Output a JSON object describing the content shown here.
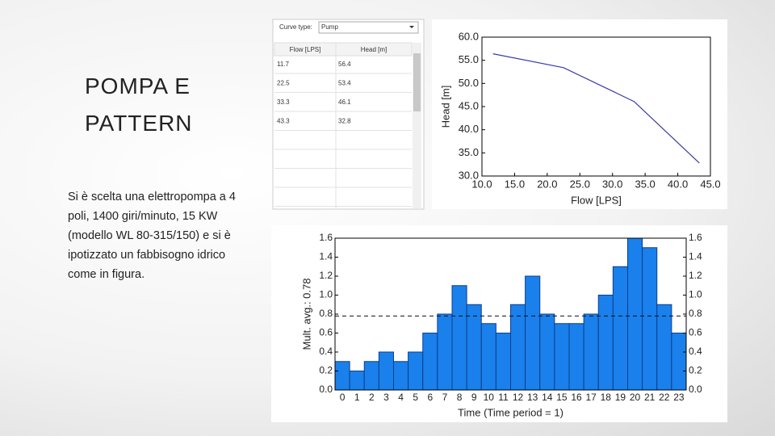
{
  "slide": {
    "title_lines": [
      "POMPA E",
      "PATTERN"
    ],
    "body": "Si è scelta una elettropompa a 4 poli, 1400 giri/minuto, 15 KW (modello WL 80-315/150) e si è ipotizzato un fabbisogno idrico come in figura."
  },
  "curve_editor": {
    "label": "Curve type:",
    "selected": "Pump",
    "columns": [
      "Flow [LPS]",
      "Head [m]"
    ],
    "rows": [
      [
        "11.7",
        "56.4"
      ],
      [
        "22.5",
        "53.4"
      ],
      [
        "33.3",
        "46.1"
      ],
      [
        "43.3",
        "32.8"
      ]
    ]
  },
  "chart_data": [
    {
      "type": "line",
      "x": [
        11.7,
        22.5,
        33.3,
        43.3
      ],
      "values": [
        56.4,
        53.4,
        46.1,
        32.8
      ],
      "color": "#3a3aa8",
      "xlabel": "Flow [LPS]",
      "ylabel": "Head [m]",
      "xlim": [
        10,
        45
      ],
      "ylim": [
        30,
        60
      ],
      "xticks": [
        {
          "value": 10,
          "label": "10.0"
        },
        {
          "value": 15,
          "label": "15.0"
        },
        {
          "value": 20,
          "label": "20.0"
        },
        {
          "value": 25,
          "label": "25.0"
        },
        {
          "value": 30,
          "label": "30.0"
        },
        {
          "value": 35,
          "label": "35.0"
        },
        {
          "value": 40,
          "label": "40.0"
        },
        {
          "value": 45,
          "label": "45.0"
        }
      ],
      "yticks": [
        {
          "value": 30,
          "label": "30.0"
        },
        {
          "value": 35,
          "label": "35.0"
        },
        {
          "value": 40,
          "label": "40.0"
        },
        {
          "value": 45,
          "label": "45.0"
        },
        {
          "value": 50,
          "label": "50.0"
        },
        {
          "value": 55,
          "label": "55.0"
        },
        {
          "value": 60,
          "label": "60.0"
        }
      ]
    },
    {
      "type": "bar",
      "categories": [
        "0",
        "1",
        "2",
        "3",
        "4",
        "5",
        "6",
        "7",
        "8",
        "9",
        "10",
        "11",
        "12",
        "13",
        "14",
        "15",
        "16",
        "17",
        "18",
        "19",
        "20",
        "21",
        "22",
        "23"
      ],
      "values": [
        0.3,
        0.2,
        0.3,
        0.4,
        0.3,
        0.4,
        0.6,
        0.8,
        1.1,
        0.9,
        0.7,
        0.6,
        0.9,
        1.2,
        0.8,
        0.7,
        0.7,
        0.8,
        1.0,
        1.3,
        1.6,
        1.5,
        0.9,
        0.6
      ],
      "color": "#1a80ec",
      "average_line": 0.78,
      "xlabel": "Time (Time period = 1)",
      "ylabel": "Mult. avg.: 0.78",
      "ylim": [
        0,
        1.6
      ],
      "y2lim": [
        0,
        1.6
      ],
      "yticks": [
        {
          "value": 0,
          "label": "0.0"
        },
        0.2,
        0.4,
        0.6,
        0.8,
        {
          "value": 1,
          "label": "1.0"
        },
        1.2,
        1.4,
        1.6
      ],
      "y2ticks": [
        {
          "value": 0,
          "label": "0.0"
        },
        0.2,
        0.4,
        0.6,
        0.8,
        {
          "value": 1,
          "label": "1.0"
        },
        1.2,
        1.4,
        1.6
      ]
    }
  ]
}
